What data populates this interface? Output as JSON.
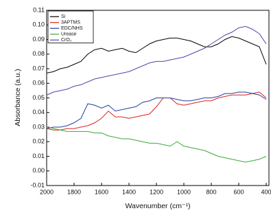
{
  "chart_data": {
    "type": "line",
    "x_label": "Wavenumber (cm⁻¹)",
    "y_label": "Absorbance (a.u.)",
    "x": [
      2000,
      1950,
      1900,
      1850,
      1800,
      1750,
      1700,
      1650,
      1600,
      1550,
      1500,
      1450,
      1400,
      1350,
      1300,
      1250,
      1200,
      1150,
      1100,
      1050,
      1000,
      950,
      900,
      850,
      800,
      750,
      700,
      650,
      600,
      550,
      500,
      450,
      400
    ],
    "series": [
      {
        "name": "Si",
        "color": "#000000",
        "values": [
          0.067,
          0.068,
          0.07,
          0.071,
          0.073,
          0.075,
          0.08,
          0.083,
          0.084,
          0.082,
          0.083,
          0.084,
          0.082,
          0.081,
          0.084,
          0.087,
          0.089,
          0.09,
          0.091,
          0.091,
          0.09,
          0.089,
          0.087,
          0.085,
          0.085,
          0.087,
          0.09,
          0.092,
          0.091,
          0.089,
          0.087,
          0.085,
          0.073
        ]
      },
      {
        "name": "3APTMS",
        "color": "#e0201c",
        "values": [
          0.029,
          0.028,
          0.028,
          0.029,
          0.029,
          0.03,
          0.031,
          0.033,
          0.036,
          0.041,
          0.037,
          0.037,
          0.036,
          0.037,
          0.038,
          0.039,
          0.044,
          0.05,
          0.05,
          0.046,
          0.045,
          0.046,
          0.047,
          0.048,
          0.048,
          0.05,
          0.051,
          0.052,
          0.052,
          0.052,
          0.053,
          0.054,
          0.05
        ]
      },
      {
        "name": "EDC/NHS",
        "color": "#1f3f9f",
        "values": [
          0.029,
          0.03,
          0.03,
          0.031,
          0.033,
          0.036,
          0.046,
          0.045,
          0.043,
          0.045,
          0.041,
          0.042,
          0.043,
          0.044,
          0.047,
          0.048,
          0.05,
          0.05,
          0.05,
          0.049,
          0.048,
          0.048,
          0.049,
          0.05,
          0.05,
          0.051,
          0.053,
          0.053,
          0.054,
          0.054,
          0.053,
          0.052,
          0.049
        ]
      },
      {
        "name": "Urease",
        "color": "#3aaa35",
        "values": [
          0.03,
          0.029,
          0.028,
          0.027,
          0.027,
          0.027,
          0.027,
          0.026,
          0.026,
          0.024,
          0.023,
          0.022,
          0.022,
          0.021,
          0.02,
          0.019,
          0.019,
          0.018,
          0.017,
          0.02,
          0.017,
          0.016,
          0.015,
          0.014,
          0.012,
          0.01,
          0.009,
          0.008,
          0.007,
          0.006,
          0.007,
          0.008,
          0.01
        ]
      },
      {
        "name": "CrO₂",
        "color": "#5b3fa8",
        "values": [
          0.052,
          0.054,
          0.055,
          0.056,
          0.058,
          0.059,
          0.061,
          0.063,
          0.064,
          0.065,
          0.066,
          0.067,
          0.068,
          0.07,
          0.072,
          0.074,
          0.075,
          0.075,
          0.076,
          0.077,
          0.078,
          0.08,
          0.082,
          0.084,
          0.087,
          0.09,
          0.093,
          0.095,
          0.098,
          0.099,
          0.097,
          0.094,
          0.087
        ]
      }
    ],
    "xlim": [
      2000,
      380
    ],
    "xticks": [
      2000,
      1800,
      1600,
      1400,
      1200,
      1000,
      800,
      600,
      400
    ],
    "ylim": [
      -0.01,
      0.11
    ],
    "yticks": [
      -0.01,
      {
        "value": 0,
        "label": "0.00"
      },
      0.01,
      0.02,
      0.03,
      0.04,
      0.05,
      0.06,
      0.07,
      0.08,
      0.09,
      {
        "value": 0.1,
        "label": "0.10"
      },
      0.11
    ],
    "legend": "upper left"
  }
}
